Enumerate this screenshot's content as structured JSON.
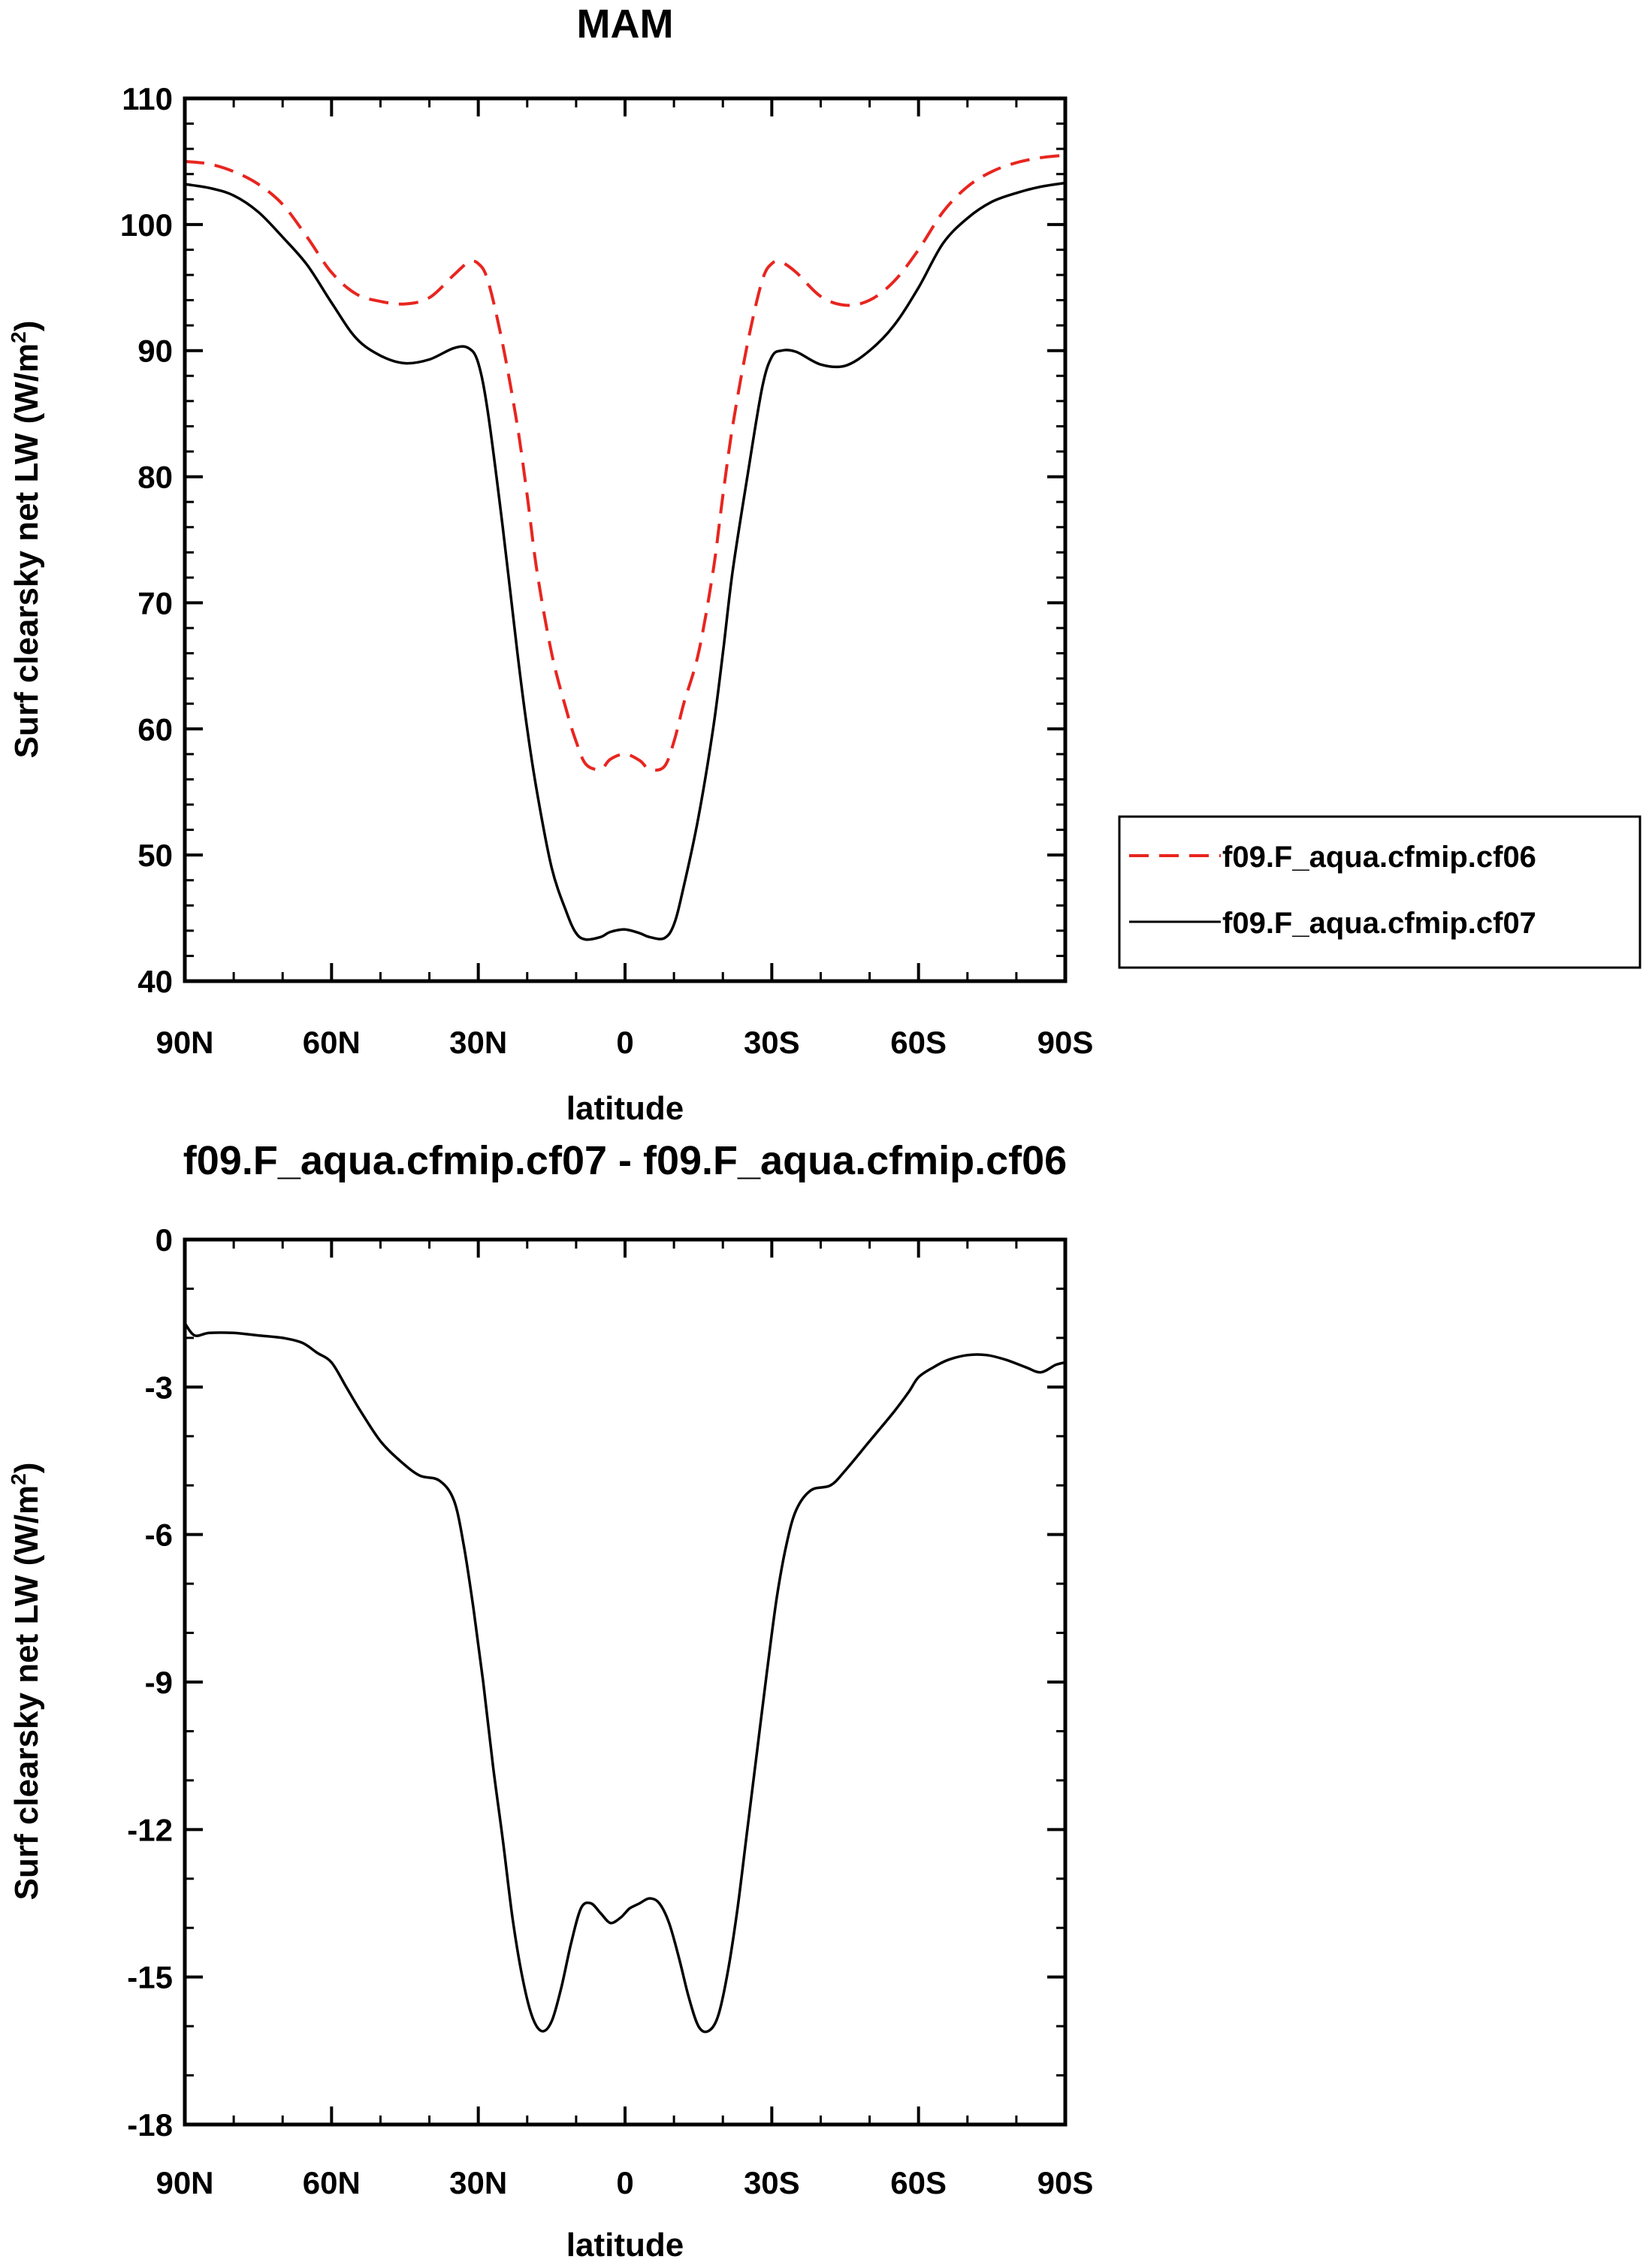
{
  "chart_data": [
    {
      "type": "line",
      "title": "MAM",
      "xlabel": "latitude",
      "ylabel_main": "Surf clearsky net LW (W/m",
      "ylabel_sup": "2",
      "ylabel_close": ")",
      "xlim": [
        90,
        -90
      ],
      "ylim": [
        40,
        110
      ],
      "x_ticks": [
        90,
        60,
        30,
        0,
        -30,
        -60,
        -90
      ],
      "x_tick_labels": [
        "90N",
        "60N",
        "30N",
        "0",
        "30S",
        "60S",
        "90S"
      ],
      "y_ticks": [
        40,
        50,
        60,
        70,
        80,
        90,
        100,
        110
      ],
      "y_tick_labels": [
        "40",
        "50",
        "60",
        "70",
        "80",
        "90",
        "100",
        "110"
      ],
      "legend_position": "right",
      "series": [
        {
          "name": "f09.F_aqua.cfmip.cf06",
          "color": "#e8251f",
          "dash": "dashed",
          "x": [
            90,
            85,
            80,
            75,
            70,
            65,
            60,
            55,
            50,
            45,
            40,
            35,
            32,
            30,
            28,
            25,
            22,
            20,
            18,
            15,
            12,
            10,
            8,
            5,
            3,
            0,
            -3,
            -5,
            -8,
            -10,
            -12,
            -15,
            -18,
            -20,
            -22,
            -25,
            -28,
            -30,
            -32,
            -35,
            -40,
            -45,
            -50,
            -55,
            -60,
            -65,
            -70,
            -75,
            -80,
            -85,
            -90
          ],
          "y": [
            105.0,
            104.8,
            104.2,
            103.2,
            101.6,
            99.0,
            96.2,
            94.5,
            93.9,
            93.7,
            94.2,
            96.0,
            97.0,
            96.9,
            95.5,
            90.5,
            84.0,
            78.5,
            72.5,
            66.0,
            61.5,
            59.0,
            57.2,
            56.8,
            57.6,
            58.0,
            57.5,
            56.8,
            57.0,
            59.0,
            62.0,
            66.0,
            72.5,
            78.5,
            84.0,
            90.5,
            95.5,
            96.9,
            97.0,
            96.2,
            94.3,
            93.6,
            94.0,
            95.5,
            98.0,
            101.0,
            103.0,
            104.2,
            104.9,
            105.3,
            105.5
          ]
        },
        {
          "name": "f09.F_aqua.cfmip.cf07",
          "color": "#000000",
          "dash": "solid",
          "x": [
            90,
            85,
            80,
            75,
            70,
            65,
            60,
            55,
            50,
            45,
            40,
            35,
            32,
            30,
            28,
            25,
            22,
            20,
            18,
            15,
            12,
            10,
            8,
            5,
            3,
            0,
            -3,
            -5,
            -8,
            -10,
            -12,
            -15,
            -18,
            -20,
            -22,
            -25,
            -28,
            -30,
            -32,
            -35,
            -40,
            -45,
            -50,
            -55,
            -60,
            -65,
            -70,
            -75,
            -80,
            -85,
            -90
          ],
          "y": [
            103.2,
            102.9,
            102.3,
            101.0,
            99.0,
            96.8,
            93.8,
            91.0,
            89.6,
            89.0,
            89.3,
            90.2,
            90.2,
            89.0,
            85.0,
            76.0,
            66.0,
            60.0,
            55.0,
            49.0,
            45.5,
            43.8,
            43.3,
            43.5,
            43.9,
            44.1,
            43.8,
            43.5,
            43.4,
            44.5,
            47.5,
            53.0,
            60.0,
            66.0,
            72.5,
            80.0,
            87.0,
            89.5,
            90.0,
            89.9,
            88.9,
            88.8,
            90.0,
            92.0,
            95.0,
            98.5,
            100.5,
            101.8,
            102.5,
            103.0,
            103.3
          ]
        }
      ]
    },
    {
      "type": "line",
      "title": "f09.F_aqua.cfmip.cf07 - f09.F_aqua.cfmip.cf06",
      "xlabel": "latitude",
      "ylabel_main": "Surf clearsky net LW (W/m",
      "ylabel_sup": "2",
      "ylabel_close": ")",
      "xlim": [
        90,
        -90
      ],
      "ylim": [
        -18,
        0
      ],
      "x_ticks": [
        90,
        60,
        30,
        0,
        -30,
        -60,
        -90
      ],
      "x_tick_labels": [
        "90N",
        "60N",
        "30N",
        "0",
        "30S",
        "60S",
        "90S"
      ],
      "y_ticks": [
        -18,
        -15,
        -12,
        -9,
        -6,
        -3,
        0
      ],
      "y_tick_labels": [
        "-18",
        "-15",
        "-12",
        "-9",
        "-6",
        "-3",
        "0"
      ],
      "series": [
        {
          "color": "#000000",
          "dash": "solid",
          "x": [
            90,
            88,
            85,
            80,
            75,
            70,
            66,
            63,
            60,
            57,
            54,
            50,
            46,
            42,
            38,
            35,
            33,
            31,
            29,
            27,
            25,
            23,
            21,
            19,
            17,
            15,
            13,
            11,
            9,
            7,
            5,
            3,
            1,
            0,
            -1,
            -3,
            -5,
            -7,
            -9,
            -11,
            -13,
            -15,
            -17,
            -19,
            -21,
            -23,
            -25,
            -27,
            -29,
            -31,
            -33,
            -35,
            -38,
            -42,
            -45,
            -50,
            -55,
            -58,
            -60,
            -63,
            -66,
            -70,
            -74,
            -78,
            -82,
            -85,
            -88,
            -90
          ],
          "y": [
            -1.7,
            -1.95,
            -1.9,
            -1.9,
            -1.95,
            -2.0,
            -2.1,
            -2.3,
            -2.5,
            -3.0,
            -3.5,
            -4.1,
            -4.5,
            -4.8,
            -4.9,
            -5.3,
            -6.2,
            -7.5,
            -9.0,
            -10.7,
            -12.2,
            -13.8,
            -15.0,
            -15.8,
            -16.1,
            -15.9,
            -15.2,
            -14.3,
            -13.6,
            -13.5,
            -13.7,
            -13.9,
            -13.8,
            -13.7,
            -13.6,
            -13.5,
            -13.4,
            -13.5,
            -13.9,
            -14.6,
            -15.4,
            -16.0,
            -16.1,
            -15.8,
            -14.9,
            -13.6,
            -12.0,
            -10.4,
            -8.8,
            -7.3,
            -6.2,
            -5.5,
            -5.1,
            -5.0,
            -4.7,
            -4.1,
            -3.5,
            -3.1,
            -2.8,
            -2.6,
            -2.45,
            -2.35,
            -2.35,
            -2.45,
            -2.6,
            -2.7,
            -2.55,
            -2.5
          ]
        }
      ]
    }
  ]
}
